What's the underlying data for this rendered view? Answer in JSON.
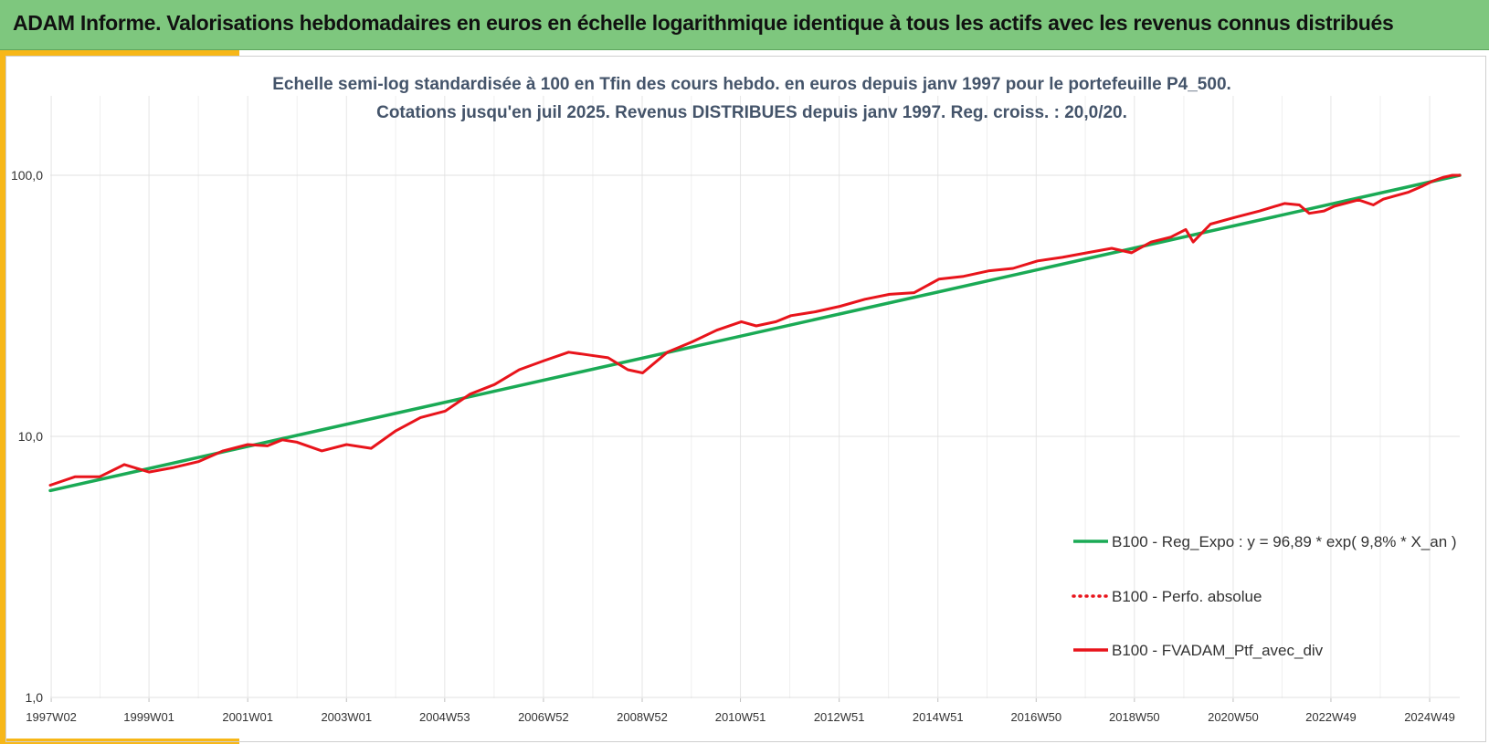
{
  "header": {
    "title": "ADAM Informe. Valorisations hebdomadaires en euros en échelle logarithmique identique à tous les actifs avec les revenus connus distribués"
  },
  "colors": {
    "banner": "#7ec77e",
    "accent": "#f7b718",
    "regression": "#1aaa55",
    "portfolio": "#e8141b"
  },
  "chart_data": {
    "type": "line",
    "title": "Echelle semi-log standardisée  à 100 en Tfin des cours hebdo.  en euros depuis janv 1997 pour le portefeuille P4_500.",
    "subtitle": "Cotations jusqu'en juil 2025. Revenus DISTRIBUES depuis janv 1997. Reg. croiss. : 20,0/20.",
    "y_scale": "log",
    "ylim": [
      1,
      200
    ],
    "y_ticks": [
      1,
      10,
      100
    ],
    "y_tick_labels": [
      "1,0",
      "10,0",
      "100,0"
    ],
    "xlim": [
      1997.0,
      2025.55
    ],
    "x_ticks": [
      1997.02,
      1999.0,
      2001.0,
      2003.0,
      2004.99,
      2006.99,
      2008.99,
      2010.98,
      2012.98,
      2014.98,
      2016.97,
      2018.96,
      2020.96,
      2022.94,
      2024.94
    ],
    "x_tick_labels": [
      "1997W02",
      "1999W01",
      "2001W01",
      "2003W01",
      "2004W53",
      "2006W52",
      "2008W52",
      "2010W51",
      "2012W51",
      "2014W51",
      "2016W50",
      "2018W50",
      "2020W50",
      "2022W49",
      "2024W49"
    ],
    "grid": true,
    "legend_position": "bottom-right",
    "legend": [
      "B100 - Reg_Expo : y = 96,89 * exp( 9,8% *  X_an )",
      "B100 - Perfo. absolue",
      "B100 - FVADAM_Ptf_avec_div"
    ],
    "series": [
      {
        "name": "B100 - Reg_Expo : y = 96,89 * exp( 9,8% *  X_an )",
        "style": "solid",
        "x": [
          1997.0,
          2025.55
        ],
        "y": [
          6.2,
          100.0
        ]
      },
      {
        "name": "B100 - Perfo. absolue",
        "style": "dotted",
        "x": [],
        "y": []
      },
      {
        "name": "B100 - FVADAM_Ptf_avec_div",
        "style": "solid",
        "x": [
          1997.0,
          1997.5,
          1998.0,
          1998.5,
          1999.0,
          1999.5,
          2000.0,
          2000.5,
          2001.0,
          2001.4,
          2001.7,
          2002.0,
          2002.5,
          2003.0,
          2003.5,
          2004.0,
          2004.5,
          2005.0,
          2005.5,
          2006.0,
          2006.5,
          2007.0,
          2007.5,
          2007.9,
          2008.3,
          2008.7,
          2009.0,
          2009.5,
          2010.0,
          2010.5,
          2011.0,
          2011.3,
          2011.7,
          2012.0,
          2012.5,
          2013.0,
          2013.5,
          2014.0,
          2014.5,
          2015.0,
          2015.5,
          2016.0,
          2016.5,
          2017.0,
          2017.5,
          2018.0,
          2018.5,
          2018.9,
          2019.3,
          2019.7,
          2020.0,
          2020.15,
          2020.5,
          2021.0,
          2021.5,
          2022.0,
          2022.3,
          2022.5,
          2022.8,
          2023.0,
          2023.5,
          2023.8,
          2024.0,
          2024.5,
          2024.8,
          2025.0,
          2025.2,
          2025.4,
          2025.55
        ],
        "y": [
          6.5,
          7.0,
          7.0,
          7.8,
          7.3,
          7.6,
          8.0,
          8.8,
          9.3,
          9.2,
          9.7,
          9.5,
          8.8,
          9.3,
          9.0,
          10.5,
          11.8,
          12.5,
          14.5,
          15.8,
          18.0,
          19.5,
          21.0,
          20.5,
          20.0,
          18.0,
          17.5,
          21.0,
          23.0,
          25.5,
          27.5,
          26.5,
          27.5,
          29.0,
          30.0,
          31.5,
          33.5,
          35.0,
          35.5,
          40.0,
          41.0,
          43.0,
          44.0,
          47.0,
          48.5,
          50.5,
          52.5,
          50.5,
          55.5,
          58.0,
          62.0,
          55.5,
          65.0,
          69.0,
          73.0,
          78.0,
          77.0,
          71.5,
          73.0,
          76.0,
          80.5,
          77.0,
          81.0,
          86.0,
          91.0,
          95.0,
          98.0,
          100.0,
          100.0
        ]
      }
    ]
  }
}
